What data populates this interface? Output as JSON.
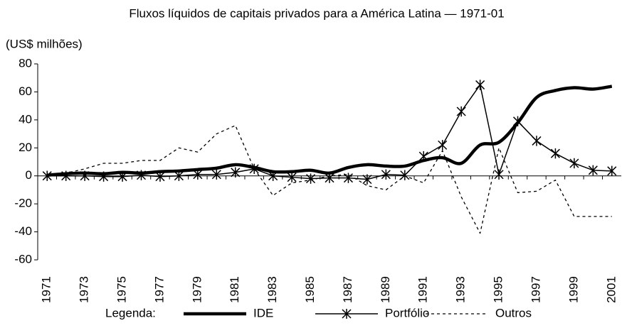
{
  "chart_data": {
    "type": "line",
    "title": "Fluxos líquidos de capitais privados para a América Latina — 1971-01",
    "y_label": "(US$ milhões)",
    "legend_title": "Legenda:",
    "categories": [
      "1971",
      null,
      "1973",
      null,
      "1975",
      null,
      "1977",
      null,
      "1979",
      null,
      "1981",
      null,
      "1983",
      null,
      "1985",
      null,
      "1987",
      null,
      "1989",
      null,
      "1991",
      null,
      "1993",
      null,
      "1995",
      null,
      "1997",
      null,
      "1999",
      null,
      "2001"
    ],
    "series": [
      {
        "name": "IDE",
        "color": "#000000",
        "style": "smooth",
        "width": 4.5,
        "marker": "none",
        "values": [
          0.5,
          1.5,
          2,
          1.5,
          2.5,
          2,
          3,
          3.5,
          4.5,
          5.5,
          8,
          6,
          3,
          3,
          4,
          2,
          6,
          8,
          7,
          7,
          11,
          13,
          9,
          22,
          24,
          38,
          56,
          61,
          63,
          62,
          64
        ]
      },
      {
        "name": "Portfólio",
        "color": "#000000",
        "style": "solid",
        "width": 1.5,
        "marker": "asterisk",
        "values": [
          0,
          0,
          0,
          -0.5,
          -0.5,
          0.5,
          -0.5,
          0,
          1,
          1,
          2.5,
          5,
          0,
          -1,
          -2,
          -1.5,
          -1.5,
          -2.5,
          1,
          0.5,
          14,
          22,
          46,
          65,
          1,
          39,
          25,
          16,
          9,
          4,
          3.5
        ]
      },
      {
        "name": "Outros",
        "color": "#000000",
        "style": "dashed",
        "width": 1.3,
        "marker": "none",
        "values": [
          1,
          2,
          5,
          9,
          9,
          11,
          11,
          20,
          17,
          30,
          36,
          5,
          -14,
          -5,
          -3,
          0,
          1,
          -7,
          -10,
          0,
          -5,
          18,
          -15,
          -41,
          20,
          -12,
          -11,
          -3,
          -29,
          -29,
          -29
        ]
      }
    ],
    "ylim": [
      -60,
      80
    ],
    "yticks": [
      -60,
      -40,
      -20,
      0,
      20,
      40,
      60,
      80
    ],
    "grid": false
  }
}
